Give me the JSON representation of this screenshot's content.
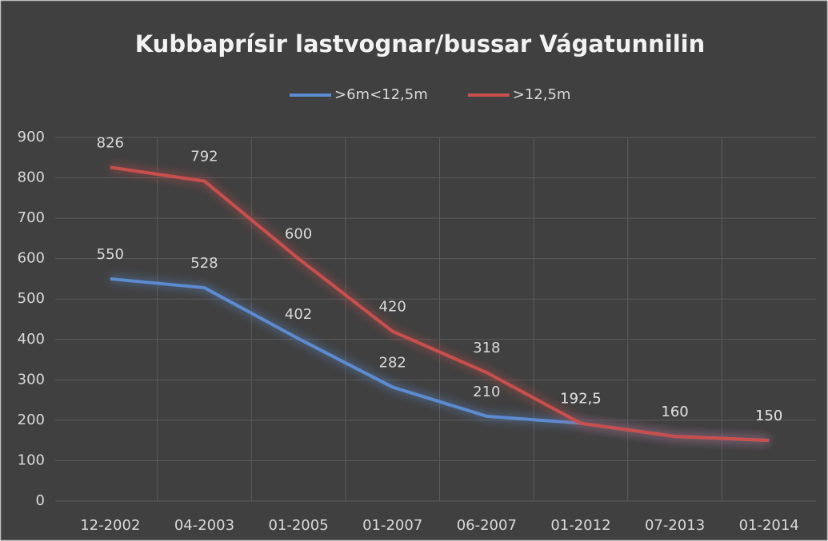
{
  "chart_data": {
    "type": "line",
    "title": "Kubbaprísir lastvognar/bussar Vágatunnilin",
    "categories": [
      "12-2002",
      "04-2003",
      "01-2005",
      "01-2007",
      "06-2007",
      "01-2012",
      "07-2013",
      "01-2014"
    ],
    "series": [
      {
        "name": ">6m<12,5m",
        "color": "#5b8bd0",
        "values": [
          550,
          528,
          402,
          282,
          210,
          192.5,
          160,
          150
        ],
        "value_labels": [
          "550",
          "528",
          "402",
          "282",
          "210",
          "192,5",
          "160",
          "150"
        ]
      },
      {
        "name": ">12,5m",
        "color": "#c9504d",
        "values": [
          826,
          792,
          600,
          420,
          318,
          192.5,
          160,
          150
        ],
        "value_labels": [
          "826",
          "792",
          "600",
          "420",
          "318",
          "192,5",
          "160",
          "150"
        ]
      }
    ],
    "ylim": [
      0,
      900
    ],
    "yticks": [
      0,
      100,
      200,
      300,
      400,
      500,
      600,
      700,
      800,
      900
    ],
    "grid": true,
    "legend": "top"
  }
}
